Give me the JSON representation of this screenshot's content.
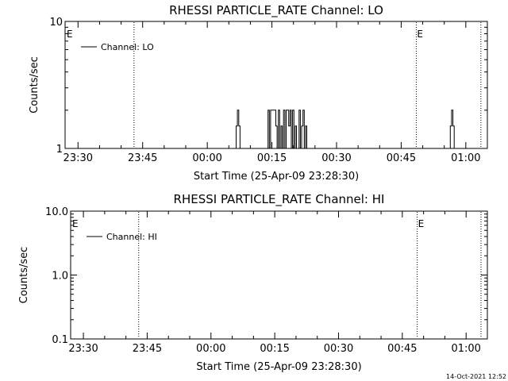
{
  "chart_data": [
    {
      "type": "line",
      "title": "RHESSI PARTICLE_RATE Channel: LO",
      "xlabel": "Start Time (25-Apr-09 23:28:30)",
      "ylabel": "Counts/sec",
      "y_scale": "log",
      "ylim": [
        1,
        10
      ],
      "y_tick_labels": [
        "1",
        "10"
      ],
      "xlim_minutes": [
        -1.5,
        96.5
      ],
      "x_tick_labels": [
        "23:30",
        "23:45",
        "00:00",
        "00:15",
        "00:30",
        "00:45",
        "01:00"
      ],
      "grid": false,
      "legend_position": "top-left",
      "series": [
        {
          "name": "Channel: LO",
          "x_minutes": [
            37.9,
            38.2,
            38.5,
            38.8,
            39.1,
            45.0,
            45.3,
            45.6,
            45.9,
            46.2,
            46.5,
            46.8,
            47.1,
            47.4,
            47.7,
            48.0,
            48.3,
            48.6,
            48.9,
            49.2,
            49.5,
            49.8,
            50.1,
            50.4,
            50.7,
            51.0,
            51.3,
            51.6,
            51.9,
            52.2,
            52.5,
            52.8,
            53.1,
            53.4,
            53.7,
            54.0,
            54.3,
            54.6,
            54.9,
            55.2,
            87.6,
            87.9,
            88.2,
            88.5,
            88.8
          ],
          "values": [
            1,
            1.5,
            2,
            1.5,
            1,
            1,
            1,
            2,
            1,
            2,
            2,
            2,
            2,
            1.5,
            1,
            2,
            1,
            1.5,
            1,
            2,
            1,
            2,
            2,
            1.5,
            2,
            1,
            2,
            1,
            1.5,
            1,
            1,
            2,
            1,
            1.5,
            2,
            1,
            1.5,
            1,
            1,
            1,
            1,
            1.5,
            2,
            1.5,
            1
          ]
        }
      ],
      "annotations": [
        {
          "label": "E",
          "x_minutes": -1.5,
          "line": "none"
        },
        {
          "label": "",
          "x_minutes": 14.5,
          "line": "dotted"
        },
        {
          "label": "E",
          "x_minutes": 80.0,
          "line": "dotted"
        },
        {
          "label": "",
          "x_minutes": 95.0,
          "line": "dotted"
        }
      ]
    },
    {
      "type": "line",
      "title": "RHESSI PARTICLE_RATE Channel: HI",
      "xlabel": "Start Time (25-Apr-09 23:28:30)",
      "ylabel": "Counts/sec",
      "y_scale": "log",
      "ylim": [
        0.1,
        10
      ],
      "y_tick_labels": [
        "0.1",
        "1.0",
        "10.0"
      ],
      "xlim_minutes": [
        -1.5,
        96.5
      ],
      "x_tick_labels": [
        "23:30",
        "23:45",
        "00:00",
        "00:15",
        "00:30",
        "00:45",
        "01:00"
      ],
      "grid": false,
      "legend_position": "top-left",
      "series": [
        {
          "name": "Channel: HI",
          "x_minutes": [],
          "values": []
        }
      ],
      "annotations": [
        {
          "label": "E",
          "x_minutes": -1.5,
          "line": "none"
        },
        {
          "label": "",
          "x_minutes": 14.5,
          "line": "dotted"
        },
        {
          "label": "E",
          "x_minutes": 80.0,
          "line": "dotted"
        },
        {
          "label": "",
          "x_minutes": 95.0,
          "line": "dotted"
        }
      ]
    }
  ],
  "footer": {
    "timestamp": "14-Oct-2021 12:52"
  }
}
